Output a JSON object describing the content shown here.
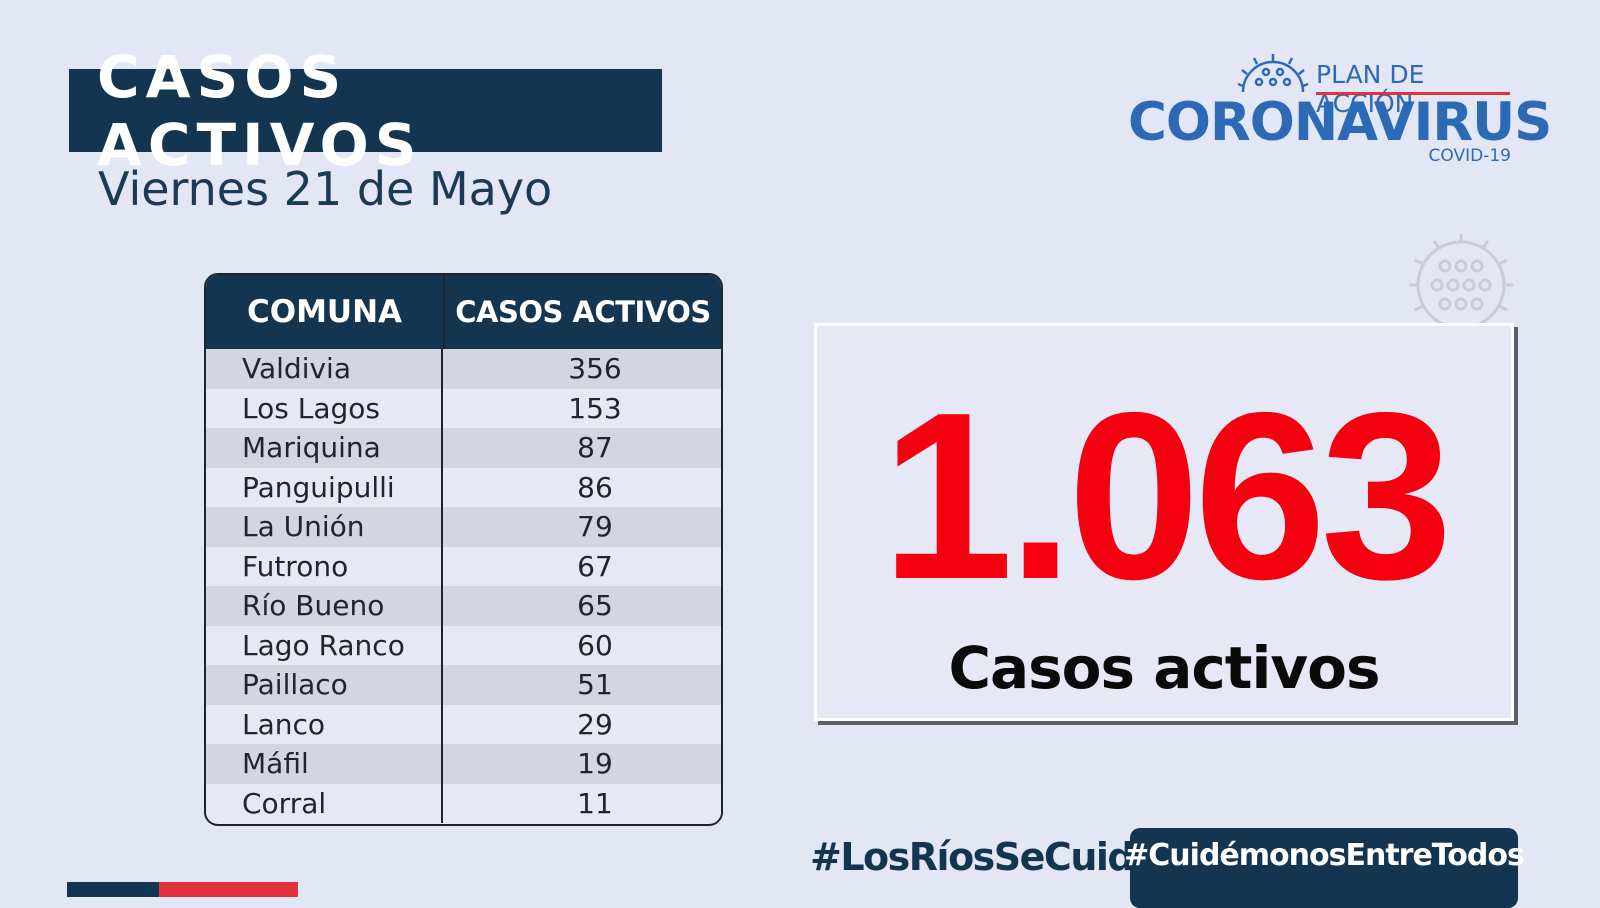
{
  "header": {
    "title": "CASOS ACTIVOS",
    "date": "Viernes 21 de Mayo"
  },
  "logo": {
    "plan": "PLAN DE ACCIÓN",
    "main": "CORONAVIRUS",
    "sub": "COVID-19",
    "icon": "virus-icon"
  },
  "table": {
    "headers": [
      "COMUNA",
      "CASOS ACTIVOS"
    ],
    "rows": [
      {
        "comuna": "Valdivia",
        "casos": "356"
      },
      {
        "comuna": "Los Lagos",
        "casos": "153"
      },
      {
        "comuna": "Mariquina",
        "casos": "87"
      },
      {
        "comuna": "Panguipulli",
        "casos": "86"
      },
      {
        "comuna": "La Unión",
        "casos": "79"
      },
      {
        "comuna": "Futrono",
        "casos": "67"
      },
      {
        "comuna": "Río Bueno",
        "casos": "65"
      },
      {
        "comuna": "Lago Ranco",
        "casos": "60"
      },
      {
        "comuna": "Paillaco",
        "casos": "51"
      },
      {
        "comuna": "Lanco",
        "casos": "29"
      },
      {
        "comuna": "Máfil",
        "casos": "19"
      },
      {
        "comuna": "Corral",
        "casos": "11"
      }
    ]
  },
  "total": {
    "value": "1.063",
    "label": "Casos activos"
  },
  "footer": {
    "hashtag_regional": "#LosRíosSeCuida",
    "hashtag_national": "#CuidémonosEntreTodos"
  },
  "colors": {
    "navy": "#13354f",
    "brand_blue": "#2d6ab6",
    "brand_red": "#e2323b",
    "total_red": "#f4000f",
    "background": "#e3e6f4"
  }
}
